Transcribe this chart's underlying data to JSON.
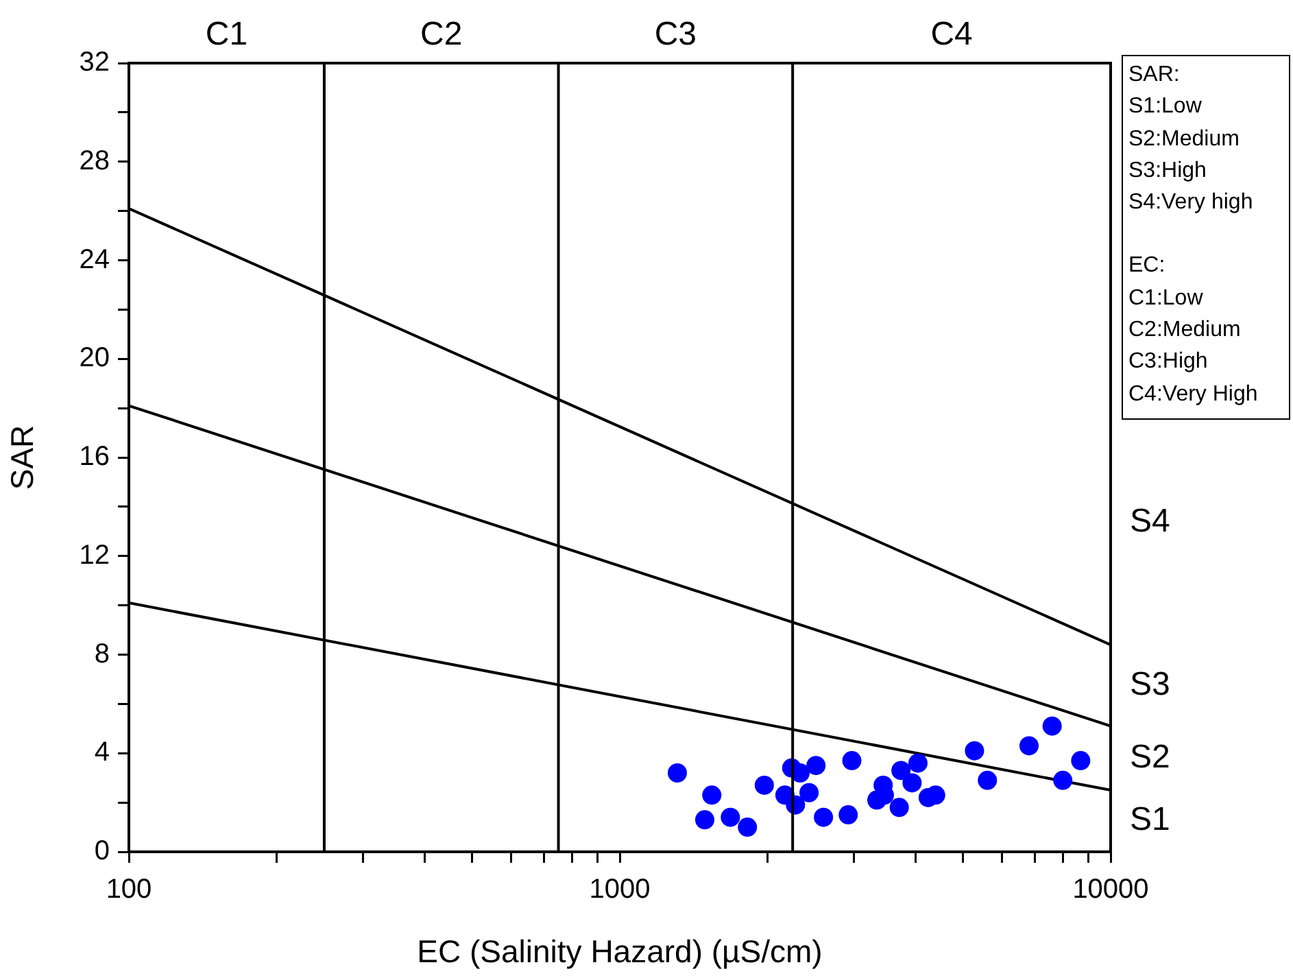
{
  "chart_data": {
    "type": "scatter",
    "xlabel": "EC (Salinity Hazard) (µS/cm)",
    "ylabel": "SAR",
    "log": "x",
    "grid": false,
    "legend": false,
    "marker": "circle",
    "xlim": [
      100,
      10000
    ],
    "ylim": [
      0,
      32
    ],
    "xticks": [
      100,
      {
        "value": 200,
        "label": null
      },
      {
        "value": 300,
        "label": null
      },
      {
        "value": 400,
        "label": null
      },
      {
        "value": 500,
        "label": null
      },
      {
        "value": 600,
        "label": null
      },
      {
        "value": 700,
        "label": null
      },
      {
        "value": 800,
        "label": null
      },
      {
        "value": 900,
        "label": null
      },
      1000,
      {
        "value": 2000,
        "label": null
      },
      {
        "value": 3000,
        "label": null
      },
      {
        "value": 4000,
        "label": null
      },
      {
        "value": 5000,
        "label": null
      },
      {
        "value": 6000,
        "label": null
      },
      {
        "value": 7000,
        "label": null
      },
      {
        "value": 8000,
        "label": null
      },
      {
        "value": 9000,
        "label": null
      },
      10000
    ],
    "yticks": [
      0,
      {
        "value": 2,
        "label": null
      },
      4,
      {
        "value": 6,
        "label": null
      },
      8,
      {
        "value": 10,
        "label": null
      },
      12,
      {
        "value": 14,
        "label": null
      },
      16,
      {
        "value": 18,
        "label": null
      },
      20,
      {
        "value": 22,
        "label": null
      },
      24,
      {
        "value": 26,
        "label": null
      },
      28,
      {
        "value": 30,
        "label": null
      },
      32
    ],
    "series": [
      {
        "color": "#0000ff",
        "x": [
          1310,
          1540,
          1490,
          1680,
          1820,
          1970,
          2170,
          2240,
          2330,
          2280,
          2430,
          2510,
          2600,
          2970,
          2920,
          3340,
          3440,
          3460,
          3710,
          3740,
          3940,
          4050,
          4250,
          4400,
          5280,
          5610,
          6820,
          7600,
          7990,
          8690
        ],
        "values": [
          3.2,
          2.3,
          1.3,
          1.4,
          1.0,
          2.7,
          2.3,
          3.4,
          3.2,
          1.9,
          2.4,
          3.5,
          1.4,
          3.7,
          1.5,
          2.1,
          2.7,
          2.3,
          1.8,
          3.3,
          2.8,
          3.6,
          2.2,
          2.3,
          4.1,
          2.9,
          4.3,
          5.1,
          2.9,
          3.7
        ]
      },
      {
        "type": "line",
        "color": "#000000",
        "marker": "none",
        "x": [
          100,
          10000
        ],
        "values": [
          10.1,
          2.5
        ]
      },
      {
        "type": "line",
        "color": "#000000",
        "marker": "none",
        "x": [
          100,
          10000
        ],
        "values": [
          18.1,
          5.1
        ]
      },
      {
        "type": "line",
        "color": "#000000",
        "marker": "none",
        "x": [
          100,
          10000
        ],
        "values": [
          26.1,
          8.4
        ]
      }
    ],
    "ref_lines": [
      {
        "axis": "x",
        "value": 250,
        "color": "#000000"
      },
      {
        "axis": "x",
        "value": 750,
        "color": "#000000"
      },
      {
        "axis": "x",
        "value": 2250,
        "color": "#000000"
      }
    ],
    "annotations": [
      "C1",
      "C2",
      "C3",
      "C4",
      "S4",
      "S3",
      "S2",
      "S1",
      "SAR:\nS1:Low\nS2:Medium\nS3:High\nS4:Very high",
      "EC:\nC1:Low\nC2:Medium\nC3:High\nC4:Very High"
    ]
  }
}
